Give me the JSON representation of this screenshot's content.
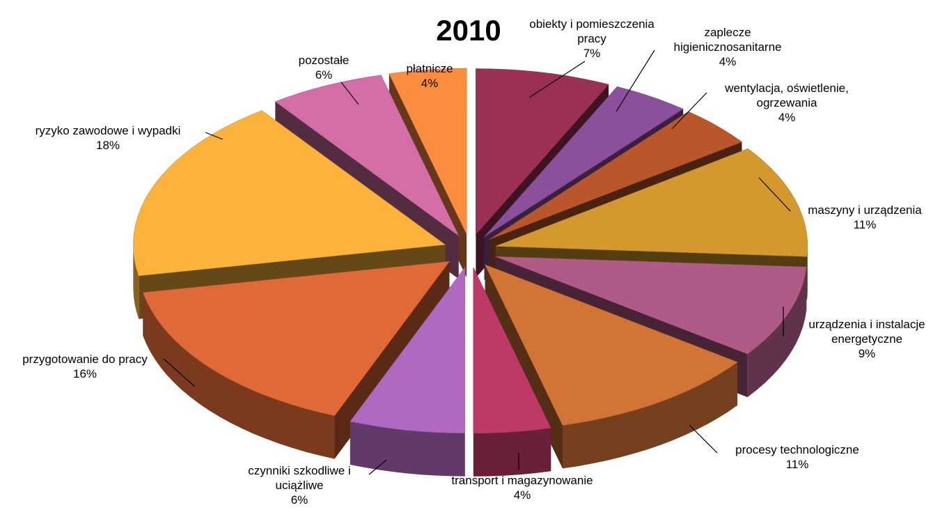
{
  "chart_data": {
    "type": "pie",
    "style": "3d-exploded",
    "title": "2010",
    "legend": "none",
    "slices": [
      {
        "label": [
          "obiekty i pomieszczenia",
          "pracy"
        ],
        "value": 7,
        "display": "7%",
        "color": "#9B3055"
      },
      {
        "label": [
          "zaplecze",
          "higienicznosanitarne"
        ],
        "value": 4,
        "display": "4%",
        "color": "#8B4F9C"
      },
      {
        "label": [
          "wentylacja, oświetlenie,",
          "ogrzewania"
        ],
        "value": 4,
        "display": "4%",
        "color": "#B9562A"
      },
      {
        "label": [
          "maszyny i urządzenia"
        ],
        "value": 11,
        "display": "11%",
        "color": "#D4992E"
      },
      {
        "label": [
          "urządzenia i instalacje",
          "energetyczne"
        ],
        "value": 9,
        "display": "9%",
        "color": "#B05A88"
      },
      {
        "label": [
          "procesy technologiczne"
        ],
        "value": 11,
        "display": "11%",
        "color": "#D27435"
      },
      {
        "label": [
          "transport i magazynowanie"
        ],
        "value": 4,
        "display": "4%",
        "color": "#BE3A66"
      },
      {
        "label": [
          "czynniki szkodliwe i",
          "uciążliwe"
        ],
        "value": 6,
        "display": "6%",
        "color": "#B069C0"
      },
      {
        "label": [
          "przygotowanie do pracy"
        ],
        "value": 16,
        "display": "16%",
        "color": "#E06A37"
      },
      {
        "label": [
          "ryzyko zawodowe i wypadki"
        ],
        "value": 18,
        "display": "18%",
        "color": "#FBB33B"
      },
      {
        "label": [
          "pozostałe"
        ],
        "value": 6,
        "display": "6%",
        "color": "#D36FA6"
      },
      {
        "label": [
          "płatnicze"
        ],
        "value": 4,
        "display": "4%",
        "color": "#FC8C3E"
      }
    ]
  }
}
